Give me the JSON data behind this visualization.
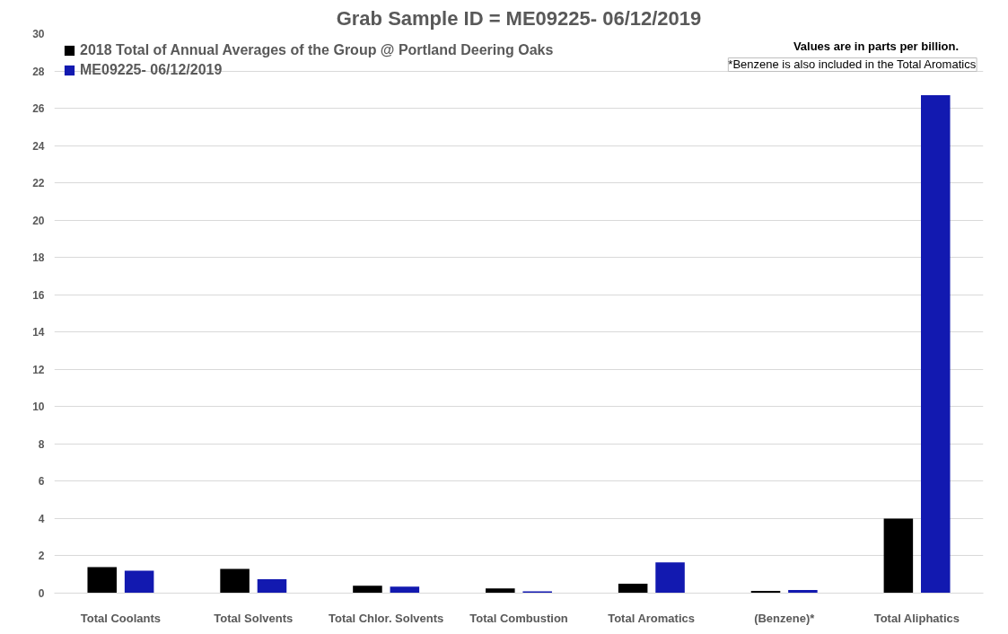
{
  "chart_data": {
    "type": "bar",
    "title": "Grab Sample ID = ME09225- 06/12/2019",
    "categories": [
      "Total Coolants",
      "Total Solvents",
      "Total Chlor. Solvents",
      "Total Combustion",
      "Total Aromatics",
      "(Benzene)*",
      "Total Aliphatics"
    ],
    "series": [
      {
        "name": "2018 Total of Annual Averages of the Group @ Portland Deering Oaks",
        "color": "#000000",
        "values": [
          1.4,
          1.3,
          0.4,
          0.25,
          0.5,
          0.12,
          4.0
        ]
      },
      {
        "name": "ME09225- 06/12/2019",
        "color": "#1219b0",
        "values": [
          1.2,
          0.75,
          0.35,
          0.1,
          1.65,
          0.17,
          26.7
        ]
      }
    ],
    "ylim": [
      0,
      30
    ],
    "yticks": [
      0,
      2,
      4,
      6,
      8,
      10,
      12,
      14,
      16,
      18,
      20,
      22,
      24,
      26,
      28,
      30
    ],
    "grid": "y",
    "legend": "top left",
    "annotations": [
      "Values are in parts per billion.",
      "*Benzene is also included in the Total Aromatics"
    ]
  }
}
